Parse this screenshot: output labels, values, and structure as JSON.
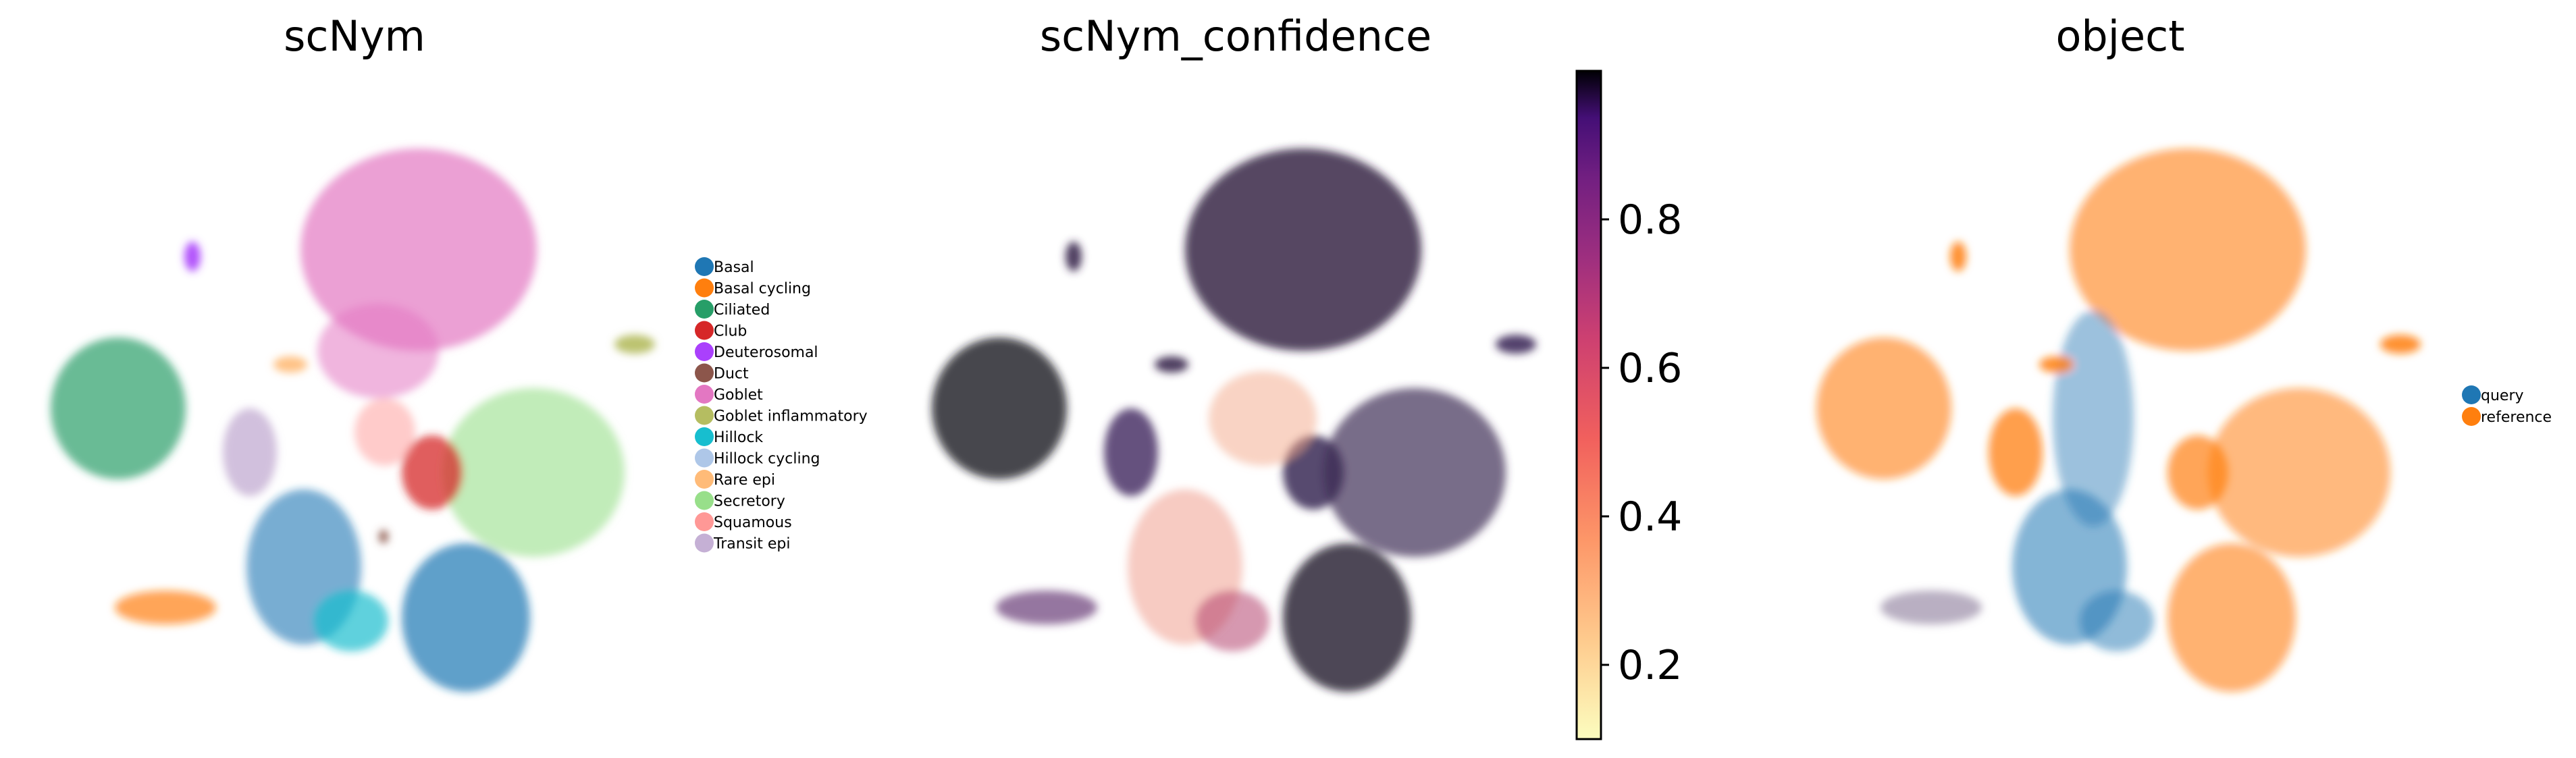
{
  "chart_data": [
    {
      "type": "scatter",
      "title": "scNym",
      "legend_placement": "right",
      "legend": [
        {
          "label": "Basal",
          "color": "#1f77b4"
        },
        {
          "label": "Basal cycling",
          "color": "#ff7f0e"
        },
        {
          "label": "Ciliated",
          "color": "#279e68"
        },
        {
          "label": "Club",
          "color": "#d62728"
        },
        {
          "label": "Deuterosomal",
          "color": "#aa40fc"
        },
        {
          "label": "Duct",
          "color": "#8c564b"
        },
        {
          "label": "Goblet",
          "color": "#e377c2"
        },
        {
          "label": "Goblet inflammatory",
          "color": "#b5bd61"
        },
        {
          "label": "Hillock",
          "color": "#17becf"
        },
        {
          "label": "Hillock cycling",
          "color": "#aec7e8"
        },
        {
          "label": "Rare epi",
          "color": "#ffbb78"
        },
        {
          "label": "Secretory",
          "color": "#98df8a"
        },
        {
          "label": "Squamous",
          "color": "#ff9896"
        },
        {
          "label": "Transit epi",
          "color": "#c5b0d5"
        }
      ]
    },
    {
      "type": "scatter",
      "title": "scNym_confidence",
      "colorbar": {
        "colormap": "magma_r",
        "range": [
          0.1,
          1.0
        ],
        "ticks": [
          "0.8",
          "0.6",
          "0.4",
          "0.2"
        ],
        "tick_values": [
          0.8,
          0.6,
          0.4,
          0.2
        ]
      }
    },
    {
      "type": "scatter",
      "title": "object",
      "legend_placement": "right",
      "legend": [
        {
          "label": "query",
          "color": "#1f77b4"
        },
        {
          "label": "reference",
          "color": "#ff7f0e"
        }
      ]
    }
  ]
}
